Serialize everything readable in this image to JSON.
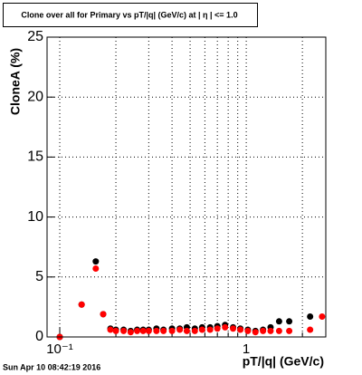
{
  "chart_data": {
    "type": "scatter",
    "title": "Clone  over all for Primary vs pT/|q| (GeV/c) at |  η | <= 1.0",
    "x_label": "pT/|q| (GeV/c)",
    "y_label": "CloneA (%)",
    "timestamp": "Sun Apr 10 08:42:19 2016",
    "x": [
      0.1,
      0.131,
      0.156,
      0.171,
      0.187,
      0.2,
      0.22,
      0.24,
      0.26,
      0.28,
      0.3,
      0.33,
      0.36,
      0.4,
      0.44,
      0.48,
      0.53,
      0.58,
      0.64,
      0.7,
      0.77,
      0.85,
      0.93,
      1.02,
      1.12,
      1.23,
      1.35,
      1.5,
      1.7,
      2.2,
      2.55
    ],
    "series": [
      {
        "color": "#000000",
        "values": [
          0,
          2.7,
          6.3,
          1.9,
          0.7,
          0.6,
          0.6,
          0.5,
          0.6,
          0.6,
          0.6,
          0.7,
          0.6,
          0.7,
          0.7,
          0.8,
          0.7,
          0.8,
          0.8,
          0.9,
          1.0,
          0.8,
          0.7,
          0.6,
          0.5,
          0.6,
          0.8,
          1.3,
          1.3,
          1.7,
          null
        ]
      },
      {
        "color": "#ff0000",
        "values": [
          0,
          2.7,
          5.7,
          1.9,
          0.6,
          0.5,
          0.5,
          0.4,
          0.5,
          0.5,
          0.5,
          0.5,
          0.5,
          0.5,
          0.6,
          0.5,
          0.5,
          0.6,
          0.6,
          0.7,
          0.8,
          0.7,
          0.6,
          0.5,
          0.4,
          0.5,
          0.5,
          0.5,
          0.5,
          0.6,
          1.7
        ]
      }
    ],
    "xlog": true,
    "xlim": [
      0.0855,
      2.67
    ],
    "xticks": [
      {
        "value": 0.1,
        "label": "10⁻¹"
      },
      1
    ],
    "xminor": [
      0.2,
      0.3,
      0.4,
      0.5,
      0.6,
      0.7,
      0.8,
      0.9,
      2
    ],
    "ylim": [
      0,
      25
    ],
    "yticks": [
      0,
      5,
      10,
      15,
      20,
      25
    ],
    "grid": true
  }
}
